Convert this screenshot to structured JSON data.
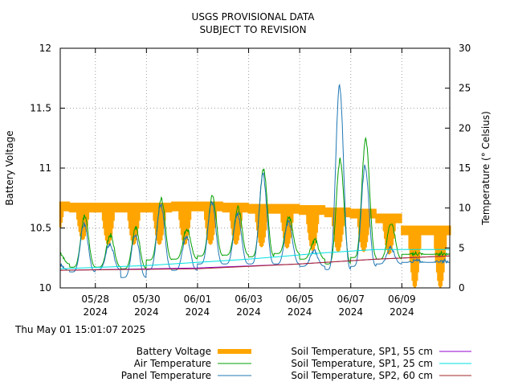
{
  "chart_data": {
    "type": "area",
    "title": "USGS PROVISIONAL DATA",
    "subtitle": "SUBJECT TO REVISION",
    "ylabel": "Battery Voltage",
    "y2label": "Temperature (° Celsius)",
    "ylim": [
      10,
      12
    ],
    "y2lim": [
      0,
      30
    ],
    "xlim": [
      "2024-05-26 15:00",
      "2024-06-10 21:00"
    ],
    "y_ticks": [
      "10",
      "10.5",
      "11",
      "11.5",
      "12"
    ],
    "y2_ticks": [
      "0",
      "5",
      "10",
      "15",
      "20",
      "25",
      "30"
    ],
    "x_ticks": [
      {
        "line1": "05/28",
        "line2": "2024"
      },
      {
        "line1": "05/30",
        "line2": "2024"
      },
      {
        "line1": "06/01",
        "line2": "2024"
      },
      {
        "line1": "06/03",
        "line2": "2024"
      },
      {
        "line1": "06/05",
        "line2": "2024"
      },
      {
        "line1": "06/07",
        "line2": "2024"
      },
      {
        "line1": "06/09",
        "line2": "2024"
      }
    ],
    "grid": true,
    "timestamp": "Thu May 01 15:01:07 2025",
    "legend_position": "bottom",
    "series": [
      {
        "name": "Battery Voltage",
        "axis": "left",
        "color": "#ffa500",
        "style": "band",
        "daily_max_v": [
          10.72,
          10.71,
          10.71,
          10.71,
          10.71,
          10.72,
          10.72,
          10.71,
          10.7,
          10.7,
          10.69,
          10.67,
          10.66,
          10.62,
          10.52
        ],
        "daily_min_v": [
          10.45,
          10.4,
          10.36,
          10.36,
          10.36,
          10.36,
          10.36,
          10.36,
          10.34,
          10.33,
          10.31,
          10.3,
          10.3,
          10.28,
          10.0
        ]
      },
      {
        "name": "Air Temperature",
        "axis": "right",
        "color": "#00a000",
        "style": "line",
        "daily_min_c": [
          3.0,
          2.6,
          2.6,
          2.4,
          3.5,
          3.6,
          4.0,
          4.1,
          3.9,
          4.3,
          3.6,
          3.0,
          3.8,
          3.6,
          4.2
        ],
        "daily_max_c": [
          4.5,
          9.0,
          6.6,
          7.5,
          11.1,
          7.4,
          11.5,
          10.0,
          14.8,
          8.8,
          6.0,
          16.0,
          18.5,
          8.2,
          4.3
        ]
      },
      {
        "name": "Panel Temperature",
        "axis": "right",
        "color": "#1f77b4",
        "style": "line",
        "daily_min_c": [
          2.2,
          2.0,
          2.3,
          1.3,
          2.3,
          2.2,
          3.0,
          3.0,
          3.0,
          3.0,
          2.7,
          2.3,
          2.7,
          3.0,
          3.2
        ],
        "daily_max_c": [
          3.0,
          8.0,
          5.5,
          6.8,
          10.5,
          6.5,
          10.8,
          9.3,
          14.2,
          8.3,
          4.6,
          25.3,
          15.3,
          5.0,
          3.4
        ]
      },
      {
        "name": "Soil Temperature, SP1, 55 cm",
        "axis": "right",
        "color": "#9400d3",
        "style": "line",
        "x": [
          "2024-05-26 15:00",
          "2024-06-01 00:00",
          "2024-06-05 00:00",
          "2024-06-08 00:00",
          "2024-06-10 21:00"
        ],
        "y": [
          2.2,
          2.5,
          3.0,
          3.6,
          4.0
        ]
      },
      {
        "name": "Soil Temperature, SP1, 25 cm",
        "axis": "right",
        "color": "#00e0e0",
        "style": "line",
        "x": [
          "2024-05-26 15:00",
          "2024-05-30 00:00",
          "2024-06-03 00:00",
          "2024-06-06 00:00",
          "2024-06-08 00:00",
          "2024-06-10 21:00"
        ],
        "y": [
          2.4,
          2.8,
          3.6,
          4.4,
          4.8,
          4.8
        ]
      },
      {
        "name": "Soil Temperature, SP2, 60 cm",
        "axis": "right",
        "color": "#a52a2a",
        "style": "line",
        "x": [
          "2024-05-26 15:00",
          "2024-06-01 00:00",
          "2024-06-05 00:00",
          "2024-06-08 00:00",
          "2024-06-10 21:00"
        ],
        "y": [
          2.2,
          2.4,
          3.0,
          3.6,
          4.0
        ]
      }
    ]
  }
}
